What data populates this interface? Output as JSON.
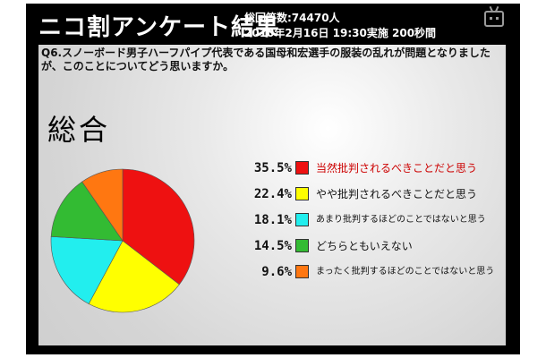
{
  "header": {
    "title": "ニコ割アンケート結果",
    "votes": "総回答数:74470人",
    "date": "2010年2月16日 19:30実施 200秒間"
  },
  "question": "Q6.スノーボード男子ハーフパイプ代表である国母和宏選手の服装の乱れが問題となりましたが、このことについてどう思いますか。",
  "colors": {
    "frame": "#000000",
    "highlight_label": "#cc0000"
  },
  "chart_data": {
    "type": "pie",
    "title": "総合",
    "categories": [
      "当然批判されるべきことだと思う",
      "やや批判されるべきことだと思う",
      "あまり批判するほどのことではないと思う",
      "どちらともいえない",
      "まったく批判するほどのことではないと思う"
    ],
    "values": [
      35.5,
      22.4,
      18.1,
      14.5,
      9.6
    ],
    "labels": [
      "35.5%",
      "22.4%",
      "18.1%",
      "14.5%",
      "9.6%"
    ],
    "colors": [
      "#ee1111",
      "#ffff00",
      "#22eeee",
      "#33bb33",
      "#ff7711"
    ],
    "start": "12 o'clock",
    "direction": "clockwise",
    "legend_position": "right"
  }
}
